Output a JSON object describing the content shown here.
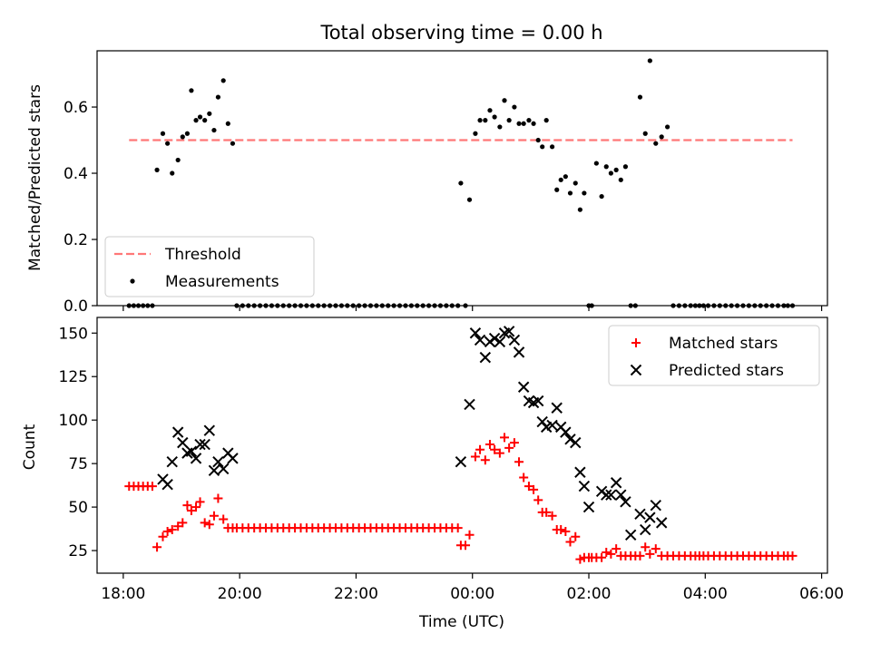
{
  "figure_title": "Total observing time = 0.00 h",
  "chart_data": [
    {
      "type": "scatter",
      "panel": "top",
      "ylabel": "Matched/Predicted stars",
      "xlabel": "",
      "x_units": "hours since 18:00 UTC",
      "xlim": [
        -0.45,
        12.1
      ],
      "ylim": [
        0,
        0.77
      ],
      "yticks": [
        0.0,
        0.2,
        0.4,
        0.6
      ],
      "ytick_labels": [
        "0.0",
        "0.2",
        "0.4",
        "0.6"
      ],
      "grid": false,
      "legend_position": "lower-left",
      "series": [
        {
          "name": "Threshold",
          "style": "dashed-line",
          "color": "#ff7777",
          "x": [
            0.1,
            11.5
          ],
          "y": [
            0.5,
            0.5
          ]
        },
        {
          "name": "Measurements",
          "style": "dots",
          "color": "#000000",
          "x": [
            0.1,
            0.18,
            0.26,
            0.34,
            0.42,
            0.5,
            0.58,
            0.68,
            0.76,
            0.84,
            0.94,
            1.02,
            1.1,
            1.17,
            1.25,
            1.32,
            1.4,
            1.48,
            1.56,
            1.63,
            1.72,
            1.8,
            1.88,
            1.95,
            2.05,
            2.15,
            2.25,
            2.35,
            2.45,
            2.55,
            2.65,
            2.75,
            2.85,
            2.95,
            3.05,
            3.15,
            3.25,
            3.35,
            3.45,
            3.55,
            3.65,
            3.75,
            3.85,
            3.95,
            4.05,
            4.15,
            4.25,
            4.35,
            4.45,
            4.55,
            4.65,
            4.75,
            4.85,
            4.95,
            5.05,
            5.15,
            5.25,
            5.35,
            5.45,
            5.55,
            5.65,
            5.75,
            5.8,
            5.88,
            5.95,
            6.05,
            6.13,
            6.22,
            6.3,
            6.38,
            6.47,
            6.55,
            6.63,
            6.72,
            6.8,
            6.88,
            6.97,
            7.05,
            7.13,
            7.2,
            7.27,
            7.37,
            7.45,
            7.52,
            7.6,
            7.68,
            7.77,
            7.85,
            7.92,
            8.0,
            8.05,
            8.13,
            8.22,
            8.3,
            8.38,
            8.47,
            8.55,
            8.63,
            8.72,
            8.8,
            8.88,
            8.97,
            9.05,
            9.15,
            9.25,
            9.35,
            9.45,
            9.55,
            9.65,
            9.75,
            9.83,
            9.9,
            9.97,
            10.05,
            10.15,
            10.25,
            10.35,
            10.45,
            10.55,
            10.65,
            10.75,
            10.85,
            10.95,
            11.05,
            11.15,
            11.25,
            11.35,
            11.42,
            11.5
          ],
          "y": [
            0,
            0,
            0,
            0,
            0,
            0,
            0.41,
            0.52,
            0.49,
            0.4,
            0.44,
            0.51,
            0.52,
            0.65,
            0.56,
            0.57,
            0.56,
            0.58,
            0.53,
            0.63,
            0.68,
            0.55,
            0.49,
            0,
            0,
            0,
            0,
            0,
            0,
            0,
            0,
            0,
            0,
            0,
            0,
            0,
            0,
            0,
            0,
            0,
            0,
            0,
            0,
            0,
            0,
            0,
            0,
            0,
            0,
            0,
            0,
            0,
            0,
            0,
            0,
            0,
            0,
            0,
            0,
            0,
            0,
            0,
            0.37,
            0,
            0.32,
            0.52,
            0.56,
            0.56,
            0.59,
            0.57,
            0.54,
            0.62,
            0.56,
            0.6,
            0.55,
            0.55,
            0.56,
            0.55,
            0.5,
            0.48,
            0.56,
            0.48,
            0.35,
            0.38,
            0.39,
            0.34,
            0.37,
            0.29,
            0.34,
            0,
            0,
            0.43,
            0.33,
            0.42,
            0.4,
            0.41,
            0.38,
            0.42,
            0,
            0,
            0.63,
            0.52,
            0.74,
            0.49,
            0.51,
            0.54,
            0,
            0,
            0,
            0,
            0,
            0,
            0,
            0,
            0,
            0,
            0,
            0,
            0,
            0,
            0,
            0,
            0,
            0,
            0,
            0,
            0,
            0,
            0
          ]
        }
      ]
    },
    {
      "type": "scatter",
      "panel": "bottom",
      "ylabel": "Count",
      "xlabel": "Time (UTC)",
      "x_units": "hours since 18:00 UTC",
      "xlim": [
        -0.45,
        12.1
      ],
      "ylim": [
        12,
        159
      ],
      "yticks": [
        25,
        50,
        75,
        100,
        125,
        150
      ],
      "ytick_labels": [
        "25",
        "50",
        "75",
        "100",
        "125",
        "150"
      ],
      "xticks": [
        0,
        2,
        4,
        6,
        8,
        10,
        12
      ],
      "xtick_labels": [
        "18:00",
        "20:00",
        "22:00",
        "00:00",
        "02:00",
        "04:00",
        "06:00"
      ],
      "grid": false,
      "legend_position": "upper-right",
      "series": [
        {
          "name": "Matched stars",
          "style": "plus",
          "color": "#ff0000",
          "x": [
            0.1,
            0.18,
            0.26,
            0.34,
            0.42,
            0.5,
            0.58,
            0.68,
            0.76,
            0.84,
            0.94,
            1.02,
            1.1,
            1.17,
            1.25,
            1.32,
            1.4,
            1.48,
            1.56,
            1.63,
            1.72,
            1.8,
            1.88,
            1.95,
            2.05,
            2.15,
            2.25,
            2.35,
            2.45,
            2.55,
            2.65,
            2.75,
            2.85,
            2.95,
            3.05,
            3.15,
            3.25,
            3.35,
            3.45,
            3.55,
            3.65,
            3.75,
            3.85,
            3.95,
            4.05,
            4.15,
            4.25,
            4.35,
            4.45,
            4.55,
            4.65,
            4.75,
            4.85,
            4.95,
            5.05,
            5.15,
            5.25,
            5.35,
            5.45,
            5.55,
            5.65,
            5.75,
            5.8,
            5.88,
            5.95,
            6.05,
            6.13,
            6.22,
            6.3,
            6.38,
            6.47,
            6.55,
            6.63,
            6.72,
            6.8,
            6.88,
            6.97,
            7.05,
            7.13,
            7.2,
            7.27,
            7.37,
            7.45,
            7.52,
            7.6,
            7.68,
            7.77,
            7.85,
            7.92,
            8.0,
            8.05,
            8.13,
            8.22,
            8.3,
            8.38,
            8.47,
            8.55,
            8.63,
            8.72,
            8.8,
            8.88,
            8.97,
            9.05,
            9.15,
            9.25,
            9.35,
            9.45,
            9.55,
            9.65,
            9.75,
            9.83,
            9.9,
            9.97,
            10.05,
            10.15,
            10.25,
            10.35,
            10.45,
            10.55,
            10.65,
            10.75,
            10.85,
            10.95,
            11.05,
            11.15,
            11.25,
            11.35,
            11.42,
            11.5
          ],
          "y": [
            62,
            62,
            62,
            62,
            62,
            62,
            27,
            33,
            36,
            37,
            39,
            41,
            51,
            48,
            50,
            53,
            41,
            40,
            45,
            55,
            43,
            38,
            38,
            38,
            38,
            38,
            38,
            38,
            38,
            38,
            38,
            38,
            38,
            38,
            38,
            38,
            38,
            38,
            38,
            38,
            38,
            38,
            38,
            38,
            38,
            38,
            38,
            38,
            38,
            38,
            38,
            38,
            38,
            38,
            38,
            38,
            38,
            38,
            38,
            38,
            38,
            38,
            28,
            28,
            34,
            79,
            83,
            77,
            86,
            83,
            81,
            90,
            84,
            87,
            76,
            67,
            62,
            60,
            54,
            47,
            47,
            45,
            37,
            37,
            36,
            30,
            33,
            20,
            21,
            21,
            21,
            21,
            21,
            24,
            23,
            26,
            22,
            22,
            22,
            22,
            22,
            27,
            23,
            26,
            22,
            22,
            22,
            22,
            22,
            22,
            22,
            22,
            22,
            22,
            22,
            22,
            22,
            22,
            22,
            22,
            22,
            22,
            22,
            22,
            22,
            22,
            22,
            22,
            22
          ]
        },
        {
          "name": "Predicted stars",
          "style": "cross",
          "color": "#000000",
          "x": [
            0.68,
            0.76,
            0.84,
            0.94,
            1.02,
            1.1,
            1.17,
            1.25,
            1.32,
            1.4,
            1.48,
            1.56,
            1.63,
            1.72,
            1.8,
            1.88,
            5.8,
            5.95,
            6.05,
            6.13,
            6.22,
            6.3,
            6.38,
            6.47,
            6.55,
            6.63,
            6.72,
            6.8,
            6.88,
            6.97,
            7.05,
            7.13,
            7.2,
            7.27,
            7.37,
            7.45,
            7.52,
            7.6,
            7.68,
            7.77,
            7.85,
            7.92,
            8.0,
            8.22,
            8.3,
            8.38,
            8.47,
            8.55,
            8.63,
            8.72,
            8.88,
            8.97,
            9.05,
            9.15,
            9.25
          ],
          "y": [
            66,
            63,
            76,
            93,
            87,
            81,
            82,
            78,
            86,
            86,
            94,
            71,
            76,
            72,
            81,
            78,
            76,
            109,
            150,
            146,
            136,
            145,
            147,
            145,
            150,
            151,
            146,
            139,
            119,
            111,
            110,
            111,
            99,
            96,
            97,
            107,
            96,
            93,
            89,
            87,
            70,
            62,
            50,
            59,
            57,
            57,
            64,
            57,
            53,
            34,
            46,
            37,
            44,
            51,
            41
          ]
        }
      ]
    }
  ]
}
